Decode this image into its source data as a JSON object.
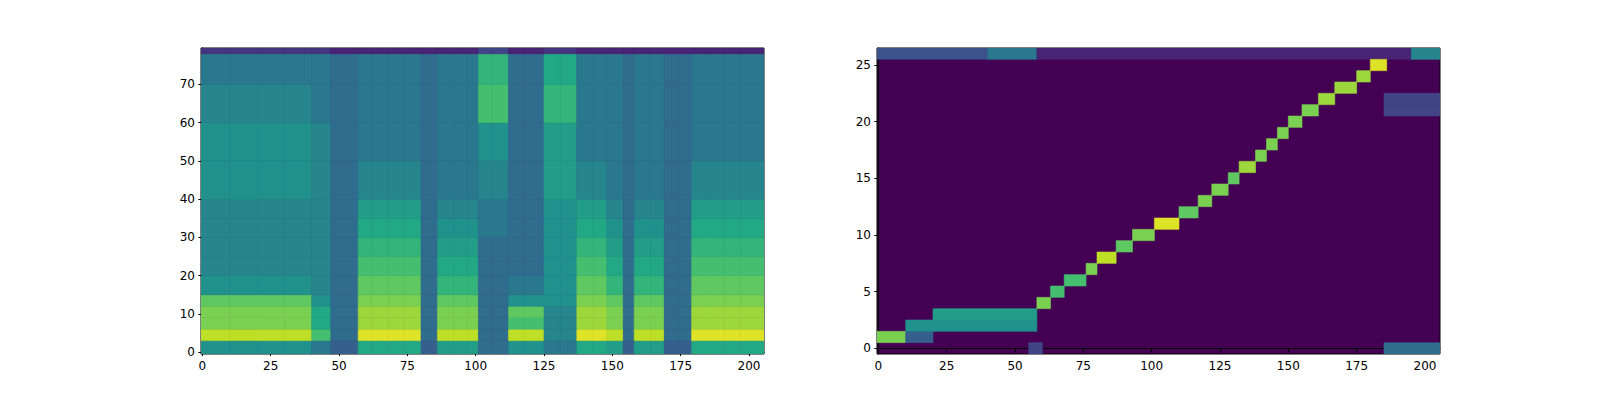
{
  "chart_data": [
    {
      "type": "heatmap",
      "xlim": [
        -0.5,
        205.5
      ],
      "ylim": [
        -0.5,
        79.5
      ],
      "xticks": [
        0,
        25,
        50,
        75,
        100,
        125,
        150,
        175,
        200
      ],
      "yticks": [
        0,
        10,
        20,
        30,
        40,
        50,
        60,
        70
      ],
      "color_range": [
        0,
        10
      ],
      "x_edges": [
        -0.5,
        10,
        20,
        30,
        40,
        47,
        57,
        62,
        68,
        74,
        80,
        86,
        92,
        97,
        101,
        106,
        112,
        118,
        125,
        131,
        137,
        143,
        148,
        154,
        158,
        164,
        169,
        174,
        179,
        185,
        191,
        197,
        205.5
      ],
      "y_edges": [
        -0.5,
        3,
        6,
        9,
        12,
        15,
        20,
        25,
        30,
        35,
        40,
        50,
        60,
        70,
        78,
        79.5
      ],
      "z": [
        [
          5,
          5,
          5,
          5,
          4,
          3,
          6,
          6,
          6,
          6,
          3,
          5.5,
          5.5,
          5.5,
          3.5,
          3.5,
          5,
          5,
          4,
          4,
          6,
          6,
          5.5,
          3,
          5.5,
          5.5,
          3,
          3,
          6,
          6,
          6,
          6
        ],
        [
          9,
          9,
          9,
          9,
          7,
          3.5,
          9.5,
          9.5,
          9.5,
          9.5,
          3.5,
          9,
          9,
          9,
          3.5,
          3.5,
          9,
          9,
          4.5,
          4.5,
          9.5,
          9.5,
          9,
          3.5,
          9,
          9,
          3.5,
          3.5,
          9.5,
          9.5,
          9.5,
          9.5
        ],
        [
          8,
          8,
          8,
          8,
          6,
          3.5,
          8.5,
          8.5,
          8.5,
          8.5,
          3.5,
          8,
          8,
          8,
          3.5,
          3.5,
          7,
          7,
          4.5,
          4.5,
          8.5,
          8.5,
          8,
          3.5,
          8,
          8,
          3.5,
          3.5,
          8.5,
          8.5,
          8.5,
          8.5
        ],
        [
          8,
          8,
          8,
          8,
          6,
          3.5,
          8.5,
          8.5,
          8.5,
          8.5,
          3.5,
          8,
          8,
          8,
          3.5,
          3.5,
          7.5,
          7.5,
          4.5,
          4.5,
          8.5,
          8.5,
          8,
          3.5,
          8,
          8,
          3.5,
          3.5,
          8.5,
          8.5,
          8.5,
          8.5
        ],
        [
          7.5,
          7.5,
          7.5,
          7.5,
          5,
          3.5,
          8,
          8,
          8,
          8,
          3.5,
          7.5,
          7.5,
          7.5,
          3.5,
          3.5,
          5,
          5,
          5,
          5,
          8,
          8,
          7.5,
          3.5,
          7.5,
          7.5,
          3.5,
          3.5,
          8,
          8,
          8,
          8
        ],
        [
          5,
          5,
          5,
          5,
          4.5,
          3.5,
          7.5,
          7.5,
          7.5,
          7.5,
          3.5,
          6.5,
          6.5,
          6.5,
          3.5,
          3.5,
          4,
          4,
          5,
          5,
          7.5,
          7.5,
          6.5,
          3.5,
          6.5,
          6.5,
          3.5,
          3.5,
          7.5,
          7.5,
          7.5,
          7.5
        ],
        [
          4.5,
          4.5,
          4.5,
          4.5,
          4.5,
          3.5,
          7,
          7,
          7,
          7,
          3.5,
          6,
          6,
          6,
          3.5,
          3.5,
          3.5,
          3.5,
          5,
          5,
          7,
          7,
          6,
          3.5,
          6,
          6,
          3.5,
          3.5,
          7,
          7,
          7,
          7
        ],
        [
          4.5,
          4.5,
          4.5,
          4.5,
          4.5,
          3.5,
          6.5,
          6.5,
          6.5,
          6.5,
          3.5,
          5.5,
          5.5,
          5.5,
          3.5,
          3.5,
          3.5,
          3.5,
          5,
          5,
          6.5,
          6.5,
          5.5,
          3.5,
          5.5,
          5.5,
          3.5,
          3.5,
          6.5,
          6.5,
          6.5,
          6.5
        ],
        [
          4.5,
          4.5,
          4.5,
          4.5,
          4.5,
          3.5,
          6,
          6,
          6,
          6,
          3.5,
          5,
          5,
          5,
          4,
          4,
          3.5,
          3.5,
          5,
          5,
          6,
          6,
          5,
          3.5,
          5,
          5,
          3.5,
          3.5,
          6,
          6,
          6,
          6
        ],
        [
          4.5,
          4.5,
          4.5,
          4.5,
          4.5,
          3.5,
          5.5,
          5.5,
          5.5,
          5.5,
          3.5,
          4.5,
          4.5,
          4.5,
          4,
          4,
          3.5,
          3.5,
          5,
          5,
          5.5,
          5.5,
          4.5,
          3.5,
          4.5,
          4.5,
          3.5,
          3.5,
          5.5,
          5.5,
          5.5,
          5.5
        ],
        [
          5,
          5,
          5,
          5,
          4.5,
          3.5,
          4.5,
          4.5,
          4.5,
          4.5,
          3.5,
          4,
          4,
          4,
          4.5,
          4.5,
          3.5,
          3.5,
          5.5,
          5.5,
          4.5,
          4.5,
          4,
          3.5,
          4,
          4,
          3.5,
          3.5,
          4.5,
          4.5,
          4.5,
          4.5
        ],
        [
          5,
          5,
          5,
          5,
          4.5,
          3.5,
          4,
          4,
          4,
          4,
          3.5,
          4,
          4,
          4,
          5,
          5,
          3.5,
          3.5,
          5.5,
          5.5,
          4,
          4,
          4,
          3.5,
          4,
          4,
          3.5,
          3.5,
          4,
          4,
          4,
          4
        ],
        [
          4.5,
          4.5,
          4.5,
          4.5,
          4,
          3.5,
          4,
          4,
          4,
          4,
          3.5,
          4,
          4,
          4,
          7,
          7,
          3.5,
          3.5,
          6.5,
          6.5,
          4,
          4,
          4,
          3.5,
          4,
          4,
          3.5,
          3.5,
          4,
          4,
          4,
          4
        ],
        [
          4,
          4,
          4,
          4,
          4,
          3.5,
          4,
          4,
          4,
          4,
          3.5,
          4,
          4,
          4,
          6.5,
          6.5,
          3.5,
          3.5,
          6,
          6,
          4,
          4,
          4,
          3.5,
          4,
          4,
          3.5,
          3.5,
          4,
          4,
          4,
          4
        ],
        [
          1.5,
          1.5,
          1.5,
          1.5,
          1.5,
          1,
          1,
          1,
          1,
          1,
          1,
          1,
          1,
          1,
          2,
          2,
          1,
          1,
          1.5,
          1.5,
          1,
          1,
          1,
          1,
          1,
          1,
          1,
          1,
          1,
          1,
          1,
          1
        ]
      ]
    },
    {
      "type": "heatmap",
      "xlim": [
        -0.5,
        205.5
      ],
      "ylim": [
        -0.5,
        26.5
      ],
      "xticks": [
        0,
        25,
        50,
        75,
        100,
        125,
        150,
        175,
        200
      ],
      "yticks": [
        0,
        5,
        10,
        15,
        20,
        25
      ],
      "color_range": [
        0,
        10
      ],
      "cells": [
        [
          -0.5,
          40,
          26,
          2.5
        ],
        [
          40,
          58,
          26,
          4
        ],
        [
          58,
          195,
          26,
          1
        ],
        [
          195,
          205.5,
          26,
          4.5
        ],
        [
          55,
          60,
          0,
          2
        ],
        [
          185,
          205.5,
          0,
          3.5
        ],
        [
          -0.5,
          10,
          1,
          8
        ],
        [
          10,
          20,
          1,
          3
        ],
        [
          10,
          58,
          2,
          5
        ],
        [
          20,
          58,
          3,
          5.5
        ],
        [
          58,
          63,
          4,
          8
        ],
        [
          63,
          68,
          5,
          7
        ],
        [
          68,
          76,
          6,
          7
        ],
        [
          76,
          80,
          7,
          8
        ],
        [
          80,
          87,
          8,
          9
        ],
        [
          87,
          93,
          9,
          7.5
        ],
        [
          93,
          101,
          10,
          8
        ],
        [
          101,
          110,
          11,
          9.5
        ],
        [
          110,
          117,
          12,
          7.5
        ],
        [
          117,
          122,
          13,
          8
        ],
        [
          122,
          128,
          14,
          8
        ],
        [
          128,
          132,
          15,
          7.5
        ],
        [
          132,
          138,
          16,
          8.5
        ],
        [
          138,
          142,
          17,
          8
        ],
        [
          142,
          146,
          18,
          8
        ],
        [
          146,
          150,
          19,
          8
        ],
        [
          150,
          155,
          20,
          8
        ],
        [
          155,
          161,
          21,
          8
        ],
        [
          161,
          167,
          22,
          8.5
        ],
        [
          167,
          175,
          23,
          8.5
        ],
        [
          175,
          180,
          24,
          8.5
        ],
        [
          180,
          186,
          25,
          9.5
        ],
        [
          185,
          205.5,
          21,
          2
        ],
        [
          185,
          205.5,
          22,
          2
        ]
      ]
    }
  ]
}
